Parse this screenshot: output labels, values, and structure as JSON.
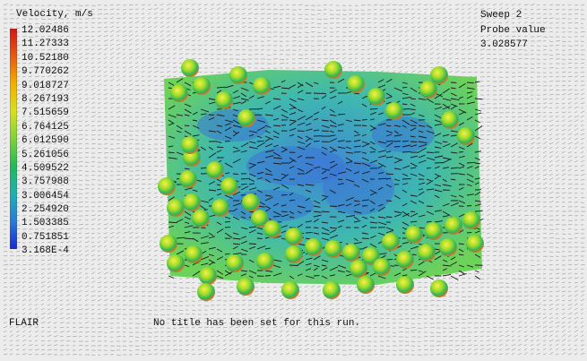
{
  "legend": {
    "title": "Velocity, m/s",
    "ticks": [
      "12.02486",
      "11.27333",
      "10.52180",
      "9.770262",
      "9.018727",
      "8.267193",
      "7.515659",
      "6.764125",
      "6.012590",
      "5.261056",
      "4.509522",
      "3.757988",
      "3.006454",
      "2.254920",
      "1.503385",
      "0.751851",
      "3.168E-4"
    ],
    "colors": [
      "#d41414",
      "#e85a10",
      "#f0b000",
      "#d8e020",
      "#7ed23a",
      "#23b85a",
      "#20b0b0",
      "#2a7ad8",
      "#1a2ad0"
    ]
  },
  "sweep": {
    "label": "Sweep 2"
  },
  "probe": {
    "label": "Probe value",
    "value": "3.028577"
  },
  "app": {
    "name": "FLAIR"
  },
  "run": {
    "title": "No title has been set for this run."
  },
  "field": {
    "colors": {
      "background": "#ececec",
      "arrows": "#1a1a1a",
      "plate_base": "#3fb8b0",
      "plate_low": "#3f86d6",
      "plate_high": "#6cd25a"
    }
  }
}
